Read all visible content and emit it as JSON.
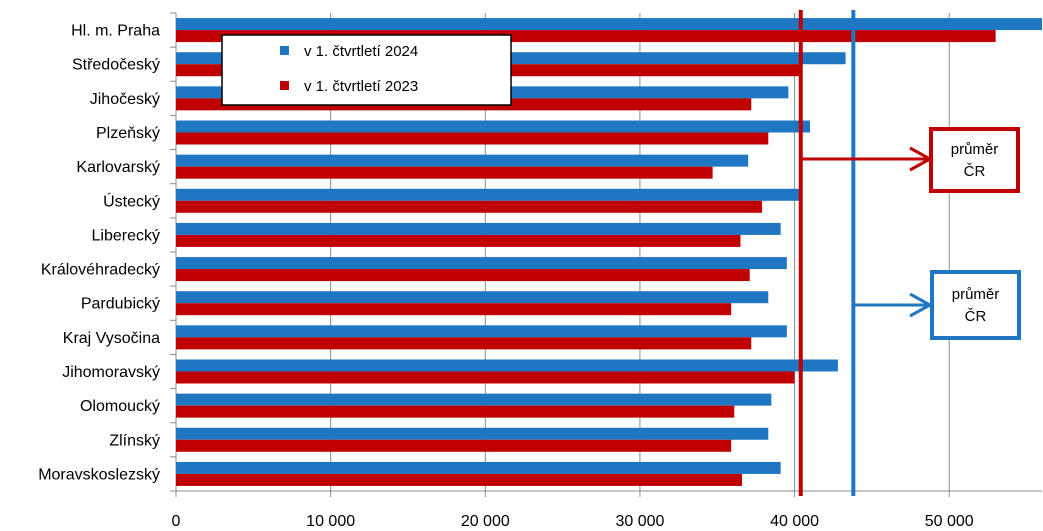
{
  "chart_data": {
    "type": "bar",
    "orientation": "horizontal",
    "categories": [
      "Hl. m. Praha",
      "Středočeský",
      "Jihočeský",
      "Plzeňský",
      "Karlovarský",
      "Ústecký",
      "Liberecký",
      "Královéhradecký",
      "Pardubický",
      "Kraj Vysočina",
      "Jihomoravský",
      "Olomoucký",
      "Zlínský",
      "Moravskoslezský"
    ],
    "series": [
      {
        "name": "v 1. čtvrtletí 2024",
        "color": "#1f77c4",
        "values": [
          56600,
          43300,
          39600,
          41000,
          37000,
          40500,
          39100,
          39500,
          38300,
          39500,
          42800,
          38500,
          38300,
          39100
        ]
      },
      {
        "name": "v 1. čtvrtletí 2023",
        "color": "#c00000",
        "values": [
          53000,
          40400,
          37200,
          38300,
          34700,
          37900,
          36500,
          37100,
          35900,
          37200,
          40000,
          36100,
          35900,
          36600
        ]
      }
    ],
    "xlim": [
      0,
      56000
    ],
    "xticks": [
      0,
      10000,
      20000,
      30000,
      40000,
      50000
    ],
    "xtick_labels": [
      "0",
      "10 000",
      "20 000",
      "30 000",
      "40 000",
      "50 000"
    ],
    "grid": "vertical",
    "legend_position": "top-left",
    "reference_lines": [
      {
        "value": 40400,
        "color": "#c00000",
        "label_line1": "průměr",
        "label_line2": "ČR"
      },
      {
        "value": 43800,
        "color": "#1f77c4",
        "label_line1": "průměr",
        "label_line2": "ČR"
      }
    ]
  }
}
